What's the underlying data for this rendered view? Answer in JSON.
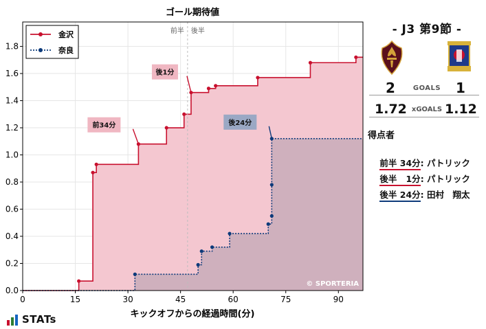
{
  "chart_data": {
    "type": "line",
    "title": "ゴール期待値",
    "xlabel": "キックオフからの経過時間(分)",
    "ylabel": "",
    "xlim": [
      0,
      97
    ],
    "ylim": [
      0,
      1.98
    ],
    "xticks": [
      0,
      15,
      30,
      45,
      60,
      75,
      90
    ],
    "yticks": [
      0.0,
      0.2,
      0.4,
      0.6,
      0.8,
      1.0,
      1.2,
      1.4,
      1.6,
      1.8
    ],
    "half_divider_x": 47,
    "half_labels": [
      "前半",
      "後半"
    ],
    "watermark": "© SPORTERIA",
    "grid": true,
    "legend_position": "top-left",
    "series": [
      {
        "name": "金沢",
        "color": "#c8102e",
        "fill": "#f4c7d0",
        "line_style": "solid",
        "points": [
          [
            0,
            0
          ],
          [
            16,
            0.07
          ],
          [
            20,
            0.87
          ],
          [
            21,
            0.93
          ],
          [
            33,
            1.08
          ],
          [
            41,
            1.2
          ],
          [
            46,
            1.3
          ],
          [
            48,
            1.46
          ],
          [
            53,
            1.49
          ],
          [
            55,
            1.51
          ],
          [
            67,
            1.57
          ],
          [
            82,
            1.68
          ],
          [
            95,
            1.72
          ],
          [
            97,
            1.72
          ]
        ]
      },
      {
        "name": "奈良",
        "color": "#0d3a7a",
        "fill": "#c8acba",
        "line_style": "dotted",
        "points": [
          [
            0,
            0
          ],
          [
            32,
            0.12
          ],
          [
            50,
            0.19
          ],
          [
            51,
            0.29
          ],
          [
            54,
            0.32
          ],
          [
            59,
            0.42
          ],
          [
            70,
            0.49
          ],
          [
            71,
            0.55
          ],
          [
            71,
            0.78
          ],
          [
            71,
            1.12
          ],
          [
            97,
            1.12
          ]
        ]
      }
    ],
    "annotations": [
      {
        "text": "前34分",
        "x": 33,
        "y": 1.08,
        "series": "金沢"
      },
      {
        "text": "後1分",
        "x": 48,
        "y": 1.46,
        "series": "金沢"
      },
      {
        "text": "後24分",
        "x": 71,
        "y": 1.12,
        "series": "奈良"
      }
    ]
  },
  "match": {
    "title": "- J3 第9節 -",
    "home_goals": "2",
    "away_goals": "1",
    "goals_label": "GOALS",
    "home_xg": "1.72",
    "away_xg": "1.12",
    "xg_label": "xGOALS"
  },
  "scorers": {
    "title": "得点者",
    "items": [
      {
        "time": "前半 34分",
        "sep": ":",
        "name": " パトリック",
        "color": "#c8102e"
      },
      {
        "time": "後半   1分",
        "sep": ":",
        "name": " パトリック",
        "color": "#c8102e"
      },
      {
        "time": "後半 24分",
        "sep": ":",
        "name": " 田村　翔太",
        "color": "#0d3a7a"
      }
    ]
  },
  "branding": {
    "label": "STATs"
  }
}
